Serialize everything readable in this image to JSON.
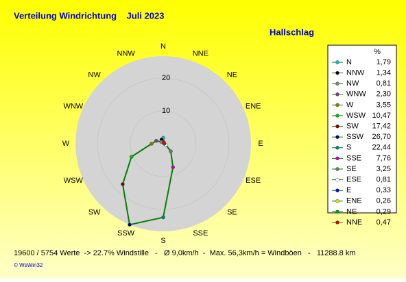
{
  "chart_data": {
    "type": "radar",
    "title": "Verteilung Windrichtung    Juli 2023",
    "subtitle": "Hallschlag",
    "categories": [
      "N",
      "NNW",
      "NW",
      "WNW",
      "W",
      "WSW",
      "SW",
      "SSW",
      "S",
      "SSE",
      "SE",
      "ESE",
      "E",
      "ENE",
      "NE",
      "NNE"
    ],
    "values": [
      1.79,
      1.34,
      0.81,
      2.3,
      3.55,
      10.47,
      17.42,
      26.7,
      22.44,
      7.76,
      3.25,
      0.81,
      0.33,
      0.26,
      0.29,
      0.47
    ],
    "value_labels": [
      "1,79",
      "1,34",
      "0,81",
      "2,30",
      "3,55",
      "10,47",
      "17,42",
      "26,70",
      "22,44",
      "7,76",
      "3,25",
      "0,81",
      "0,33",
      "0,26",
      "0,29",
      "0,47"
    ],
    "marker_colors": [
      "#00c0c0",
      "#000000",
      "#808080",
      "#804080",
      "#808000",
      "#00c000",
      "#800000",
      "#000080",
      "#008080",
      "#c000c0",
      "#608060",
      "#ffffff",
      "#0000ff",
      "#e0e000",
      "#00a000",
      "#e00000"
    ],
    "line_color": "#008000",
    "legend_header": "%",
    "rlim": [
      0,
      26.7
    ],
    "rticks": [
      10,
      20
    ],
    "footer": "19600 / 5754 Werte  -> 22.7% Windstille   -   Ø 9,0km/h  -  Max. 56,3km/h = Windböen   -   11288.8 km",
    "copyright": "© WsWin32"
  }
}
